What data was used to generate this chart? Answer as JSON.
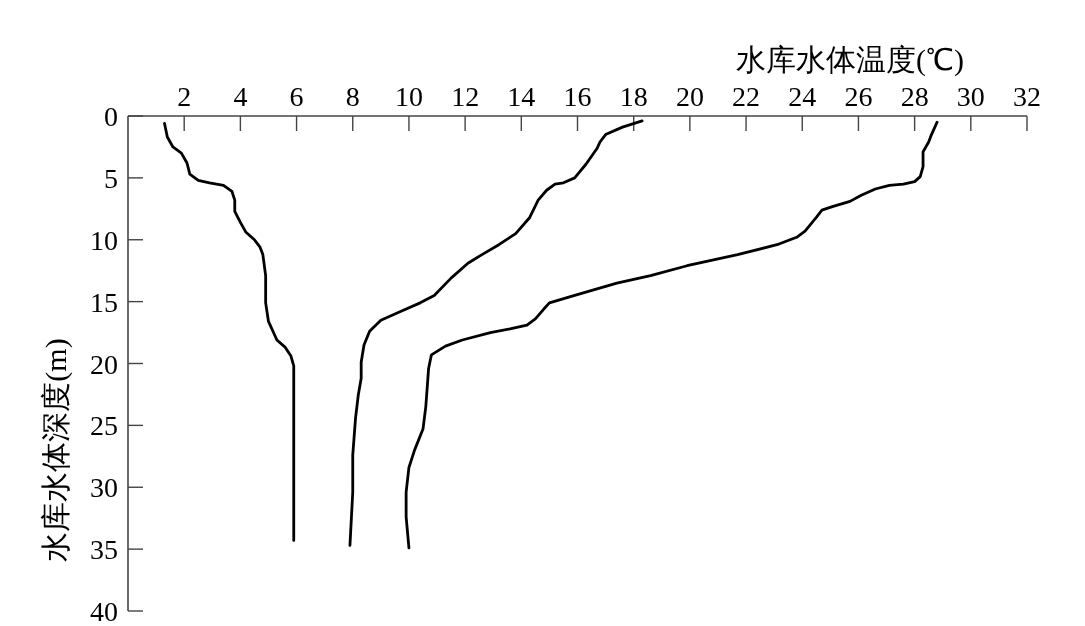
{
  "chart_data": {
    "type": "line",
    "xlabel": "水库水体温度(℃)",
    "ylabel": "水库水体深度(m)",
    "xlim": [
      0,
      32
    ],
    "ylim": [
      40,
      0
    ],
    "xticks": [
      2,
      4,
      6,
      8,
      10,
      12,
      14,
      16,
      18,
      20,
      22,
      24,
      26,
      28,
      30,
      32
    ],
    "yticks": [
      0,
      5,
      10,
      15,
      20,
      25,
      30,
      35,
      40
    ],
    "line_style": "solid",
    "series": [
      {
        "color": "#000000",
        "x": [
          1.3,
          1.4,
          1.6,
          1.9,
          2.1,
          2.2,
          2.5,
          2.9,
          3.4,
          3.7,
          3.8,
          3.8,
          4.0,
          4.2,
          4.5,
          4.7,
          4.8,
          4.9,
          4.9,
          5.0,
          5.3,
          5.6,
          5.8,
          5.9,
          5.9,
          5.9
        ],
        "values": [
          0.6,
          1.7,
          2.5,
          3.0,
          3.8,
          4.7,
          5.2,
          5.4,
          5.6,
          6.1,
          6.8,
          7.7,
          8.6,
          9.4,
          10.0,
          10.6,
          11.2,
          12.9,
          15.1,
          16.6,
          18.1,
          18.7,
          19.4,
          20.2,
          27.4,
          34.3
        ]
      },
      {
        "color": "#000000",
        "x": [
          18.3,
          17.6,
          17.0,
          16.8,
          16.7,
          16.3,
          15.9,
          15.5,
          15.2,
          14.9,
          14.6,
          14.3,
          13.8,
          13.2,
          12.6,
          12.1,
          11.5,
          10.9,
          10.4,
          9.7,
          9.0,
          8.6,
          8.4,
          8.3,
          8.3,
          8.2,
          8.1,
          8.0,
          8.0,
          7.9
        ],
        "values": [
          0.4,
          0.9,
          1.5,
          2.1,
          2.6,
          3.9,
          5.0,
          5.4,
          5.5,
          6.0,
          6.8,
          8.2,
          9.5,
          10.4,
          11.2,
          11.9,
          13.1,
          14.5,
          15.1,
          15.8,
          16.5,
          17.4,
          18.5,
          19.9,
          21.2,
          22.5,
          24.4,
          27.4,
          30.4,
          34.7
        ]
      },
      {
        "color": "#000000",
        "x": [
          28.8,
          28.6,
          28.5,
          28.3,
          28.3,
          28.2,
          28.0,
          27.6,
          27.1,
          26.6,
          26.1,
          25.7,
          25.1,
          24.7,
          24.5,
          24.1,
          23.8,
          23.1,
          21.7,
          19.9,
          18.6,
          17.4,
          15.9,
          15.0,
          14.8,
          14.5,
          14.2,
          13.6,
          12.9,
          11.9,
          11.3,
          10.8,
          10.7,
          10.6,
          10.5,
          10.2,
          10.0,
          9.9,
          9.9,
          10.0
        ],
        "values": [
          0.5,
          1.5,
          2.1,
          2.9,
          4.1,
          4.9,
          5.3,
          5.5,
          5.6,
          5.9,
          6.4,
          6.9,
          7.3,
          7.6,
          8.2,
          9.3,
          9.8,
          10.4,
          11.2,
          12.1,
          12.9,
          13.5,
          14.5,
          15.1,
          15.6,
          16.4,
          16.9,
          17.2,
          17.5,
          18.1,
          18.6,
          19.3,
          20.4,
          23.5,
          25.3,
          27.0,
          28.4,
          30.4,
          32.4,
          34.9
        ]
      }
    ]
  }
}
